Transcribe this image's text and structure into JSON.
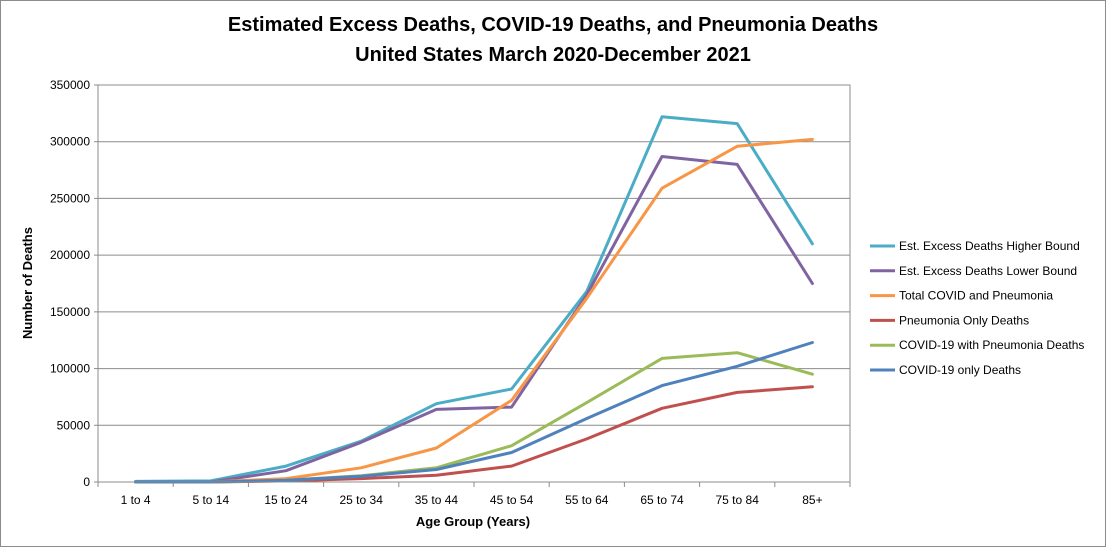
{
  "chart_data": {
    "type": "line",
    "title_line1": "Estimated Excess Deaths, COVID-19 Deaths, and Pneumonia Deaths",
    "title_line2": "United States March 2020-December 2021",
    "xlabel": "Age Group (Years)",
    "ylabel": "Number of Deaths",
    "ylim": [
      0,
      350000
    ],
    "yticks": [
      0,
      50000,
      100000,
      150000,
      200000,
      250000,
      300000,
      350000
    ],
    "ytick_labels": [
      "0",
      "50000",
      "100000",
      "150000",
      "200000",
      "250000",
      "300000",
      "350000"
    ],
    "grid": true,
    "legend_position": "right",
    "categories": [
      "1 to 4",
      "5 to 14",
      "15 to 24",
      "25 to 34",
      "35 to 44",
      "45 to 54",
      "55 to 64",
      "65 to 74",
      "75 to 84",
      "85+"
    ],
    "series": [
      {
        "name": "Est. Excess Deaths Higher Bound",
        "color": "#4BACC6",
        "values": [
          500,
          1000,
          14000,
          36000,
          69000,
          82000,
          168000,
          322000,
          316000,
          210000
        ]
      },
      {
        "name": "Est. Excess Deaths Lower Bound",
        "color": "#8064A2",
        "values": [
          0,
          0,
          10000,
          35000,
          64000,
          66000,
          165000,
          287000,
          280000,
          175000
        ]
      },
      {
        "name": "Total COVID and Pneumonia",
        "color": "#F79646",
        "values": [
          0,
          0,
          3000,
          12500,
          30000,
          72000,
          162000,
          259000,
          296000,
          302000
        ]
      },
      {
        "name": "Pneumonia Only Deaths",
        "color": "#C0504D",
        "values": [
          0,
          0,
          1000,
          3000,
          6000,
          14000,
          38000,
          65000,
          79000,
          84000
        ]
      },
      {
        "name": "COVID-19 with Pneumonia Deaths",
        "color": "#9BBB59",
        "values": [
          0,
          0,
          1500,
          5500,
          12500,
          32000,
          70000,
          109000,
          114000,
          95000
        ]
      },
      {
        "name": "COVID-19 only Deaths",
        "color": "#4F81BD",
        "values": [
          0,
          0,
          1500,
          5000,
          11000,
          26000,
          56000,
          85000,
          102000,
          123000
        ]
      }
    ]
  }
}
